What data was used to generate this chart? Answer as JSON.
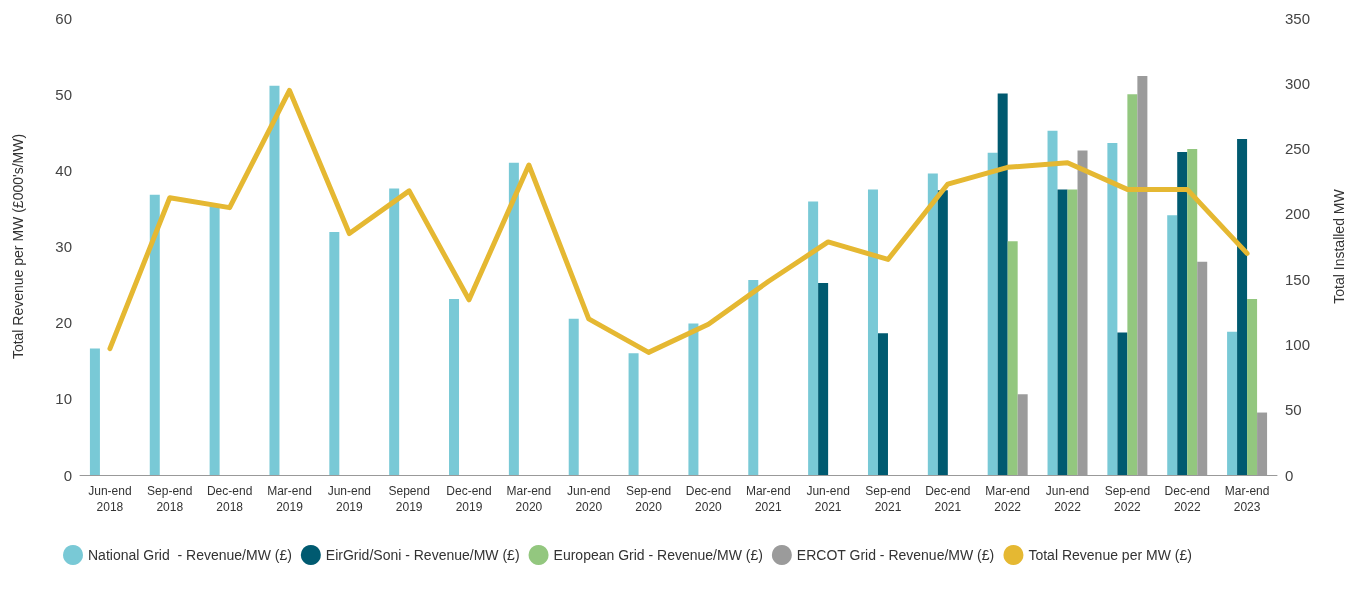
{
  "chart_data": {
    "type": "bar",
    "categories": [
      "Jun-end\n2018",
      "Sep-end\n2018",
      "Dec-end\n2018",
      "Mar-end\n2019",
      "Jun-end\n2019",
      "Sepend\n2019",
      "Dec-end\n2019",
      "Mar-end\n2020",
      "Jun-end\n2020",
      "Sep-end\n2020",
      "Dec-end\n2020",
      "Mar-end\n2021",
      "Jun-end\n2021",
      "Sep-end\n2021",
      "Dec-end\n2021",
      "Mar-end\n2022",
      "Jun-end\n2022",
      "Sep-end\n2022",
      "Dec-end\n2022",
      "Mar-end\n2023"
    ],
    "series": [
      {
        "name": "National Grid  - Revenue/MW (£)",
        "color": "#79c9d6",
        "values": [
          16.6,
          36.8,
          35.3,
          51.1,
          31.9,
          37.6,
          23.1,
          41.0,
          20.5,
          16.0,
          19.9,
          25.6,
          35.9,
          37.5,
          39.6,
          42.3,
          45.2,
          43.6,
          34.1,
          18.8
        ]
      },
      {
        "name": "EirGrid/Soni - Revenue/MW (£)",
        "color": "#005a70",
        "values": [
          null,
          null,
          null,
          null,
          null,
          null,
          null,
          null,
          null,
          null,
          null,
          null,
          25.2,
          18.6,
          37.4,
          50.1,
          37.5,
          18.7,
          42.4,
          44.1
        ]
      },
      {
        "name": "European Grid - Revenue/MW (£)",
        "color": "#93c77f",
        "values": [
          null,
          null,
          null,
          null,
          null,
          null,
          null,
          null,
          null,
          null,
          null,
          null,
          null,
          null,
          null,
          30.7,
          37.5,
          50.0,
          42.8,
          23.1
        ]
      },
      {
        "name": "ERCOT Grid - Revenue/MW (£)",
        "color": "#9b9b9b",
        "values": [
          null,
          null,
          null,
          null,
          null,
          null,
          null,
          null,
          null,
          null,
          null,
          null,
          null,
          null,
          null,
          10.6,
          42.6,
          52.4,
          28.0,
          8.2
        ]
      },
      {
        "name": "Total Revenue per MW (£)",
        "type": "line",
        "color": "#e5b832",
        "values": [
          16.6,
          36.4,
          35.1,
          50.5,
          31.7,
          37.3,
          23.0,
          40.7,
          20.5,
          16.1,
          19.8,
          25.4,
          30.6,
          28.3,
          38.2,
          40.4,
          41.0,
          37.5,
          37.5,
          29.1
        ]
      }
    ],
    "ylabel": "Total Revenue per MW (£000's/MW)",
    "y2label": "Total Installed MW",
    "ylim": [
      0,
      60
    ],
    "yticks": [
      0,
      10,
      20,
      30,
      40,
      50,
      60
    ],
    "y2lim": [
      0,
      350
    ],
    "y2ticks": [
      0,
      50,
      100,
      150,
      200,
      250,
      300,
      350
    ],
    "legend": "bottom",
    "marker": "none",
    "line_style": "solid",
    "grid": false
  }
}
